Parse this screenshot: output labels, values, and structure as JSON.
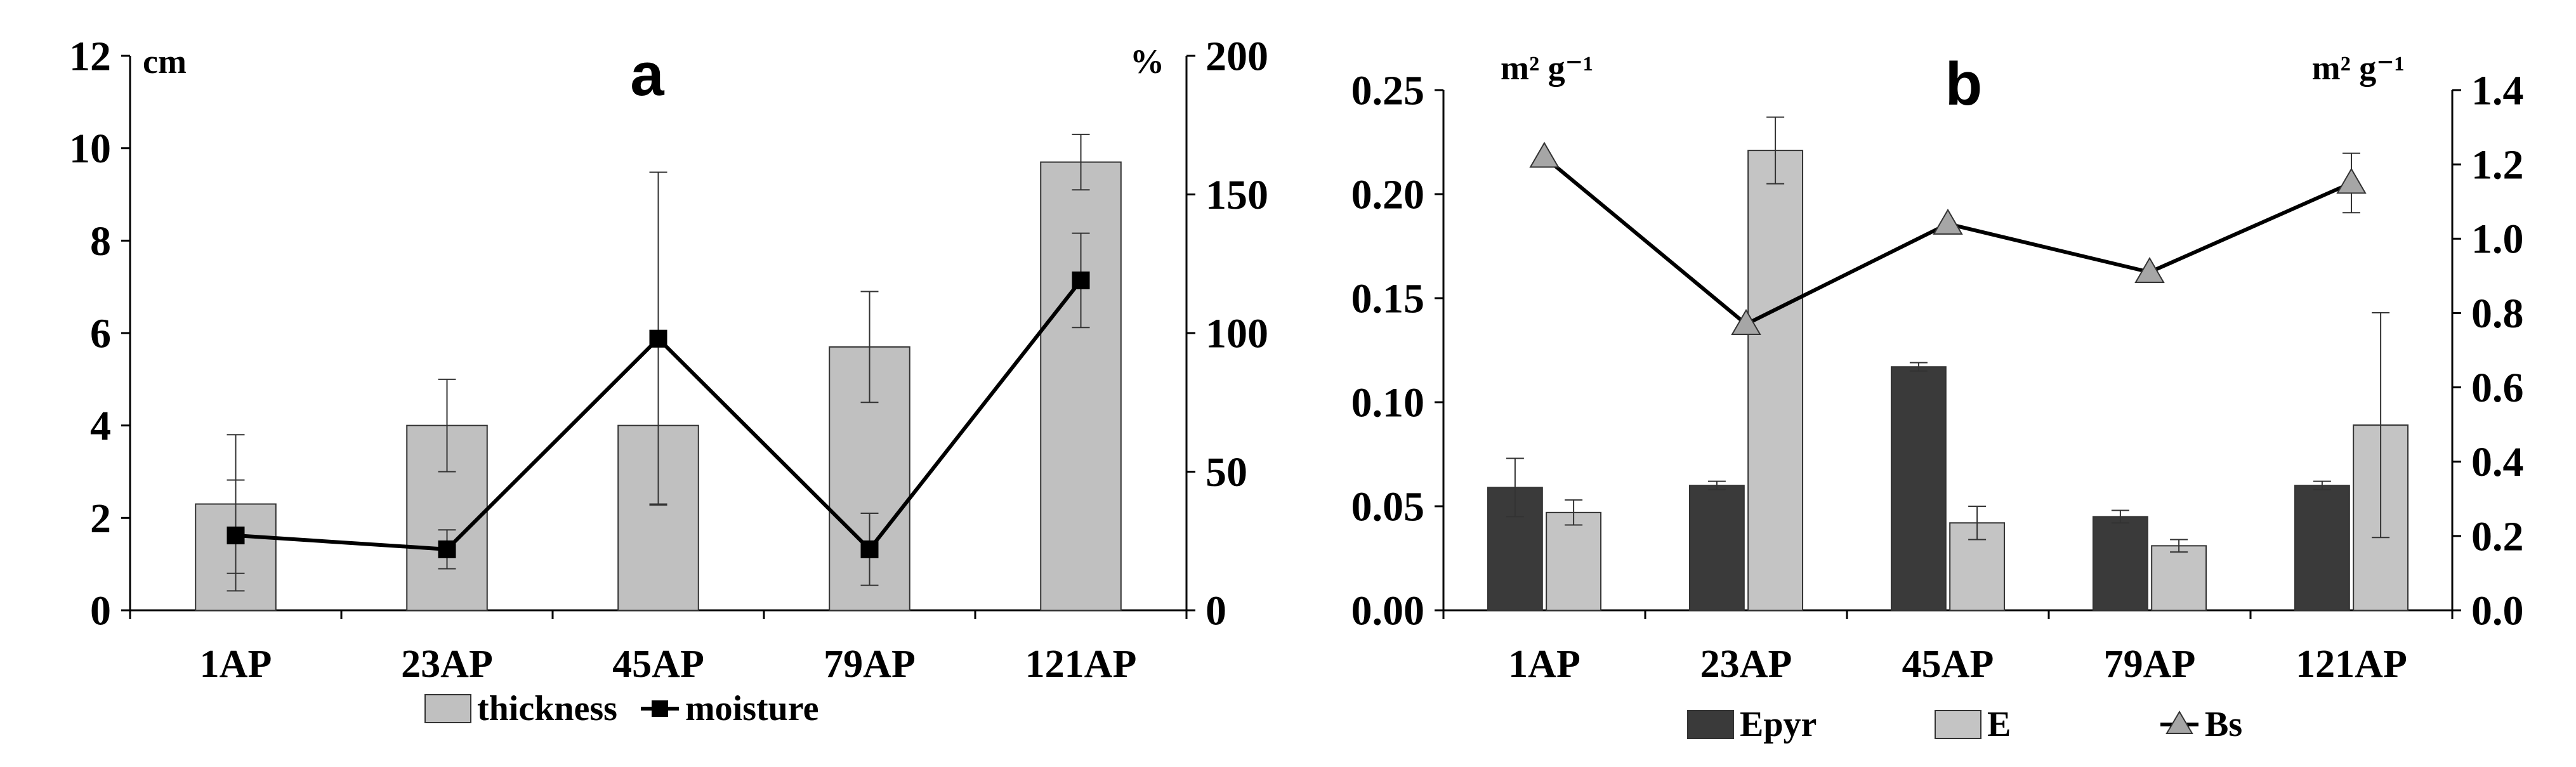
{
  "chart_data": [
    {
      "type": "bar",
      "panel_label": "a",
      "categories": [
        "1AP",
        "23AP",
        "45AP",
        "79AP",
        "121AP"
      ],
      "left_axis": {
        "unit_label": "cm",
        "range": [
          0,
          12
        ],
        "ticks": [
          "0",
          "2",
          "4",
          "6",
          "8",
          "10",
          "12"
        ]
      },
      "right_axis": {
        "unit_label": "%",
        "range": [
          0,
          200
        ],
        "ticks": [
          "0",
          "50",
          "100",
          "150",
          "200"
        ]
      },
      "series": [
        {
          "name": "thickness",
          "kind": "bar",
          "axis": "left",
          "color": "#c0c0c0",
          "values": [
            2.3,
            4.0,
            4.0,
            5.7,
            9.7
          ],
          "error": [
            1.5,
            1.0,
            1.7,
            1.2,
            0.6
          ]
        },
        {
          "name": "moisture",
          "kind": "line",
          "marker": "square",
          "axis": "right",
          "color": "#000000",
          "values": [
            27,
            22,
            98,
            22,
            119
          ],
          "error": [
            20,
            7,
            60,
            13,
            17
          ]
        }
      ],
      "legend": [
        "thickness",
        "moisture"
      ],
      "legend_position": "bottom"
    },
    {
      "type": "bar",
      "panel_label": "b",
      "categories": [
        "1AP",
        "23AP",
        "45AP",
        "79AP",
        "121AP"
      ],
      "left_axis": {
        "unit_label": "m² g⁻¹",
        "range": [
          0,
          0.25
        ],
        "ticks": [
          "0.00",
          "0.05",
          "0.10",
          "0.15",
          "0.20",
          "0.25"
        ]
      },
      "right_axis": {
        "unit_label": "m² g⁻¹",
        "range": [
          0,
          1.4
        ],
        "ticks": [
          "0.0",
          "0.2",
          "0.4",
          "0.6",
          "0.8",
          "1.0",
          "1.2",
          "1.4"
        ]
      },
      "series": [
        {
          "name": "Epyr",
          "kind": "bar",
          "axis": "left",
          "color": "#3a3a3a",
          "values": [
            0.059,
            0.06,
            0.117,
            0.045,
            0.06
          ],
          "error": [
            0.014,
            0.002,
            0.002,
            0.003,
            0.002
          ]
        },
        {
          "name": "E",
          "kind": "bar",
          "axis": "left",
          "color": "#c4c4c4",
          "values": [
            0.047,
            0.221,
            0.042,
            0.031,
            0.089
          ],
          "error": [
            0.006,
            0.016,
            0.008,
            0.003,
            0.054
          ]
        },
        {
          "name": "Bs",
          "kind": "line",
          "marker": "triangle",
          "axis": "right",
          "color": "#000000",
          "marker_color": "#a6a6a6",
          "values": [
            1.22,
            0.77,
            1.04,
            0.91,
            1.15
          ],
          "error": [
            0,
            0,
            0,
            0,
            0.08
          ]
        }
      ],
      "legend": [
        "Epyr",
        "E",
        "Bs"
      ],
      "legend_position": "bottom"
    }
  ]
}
